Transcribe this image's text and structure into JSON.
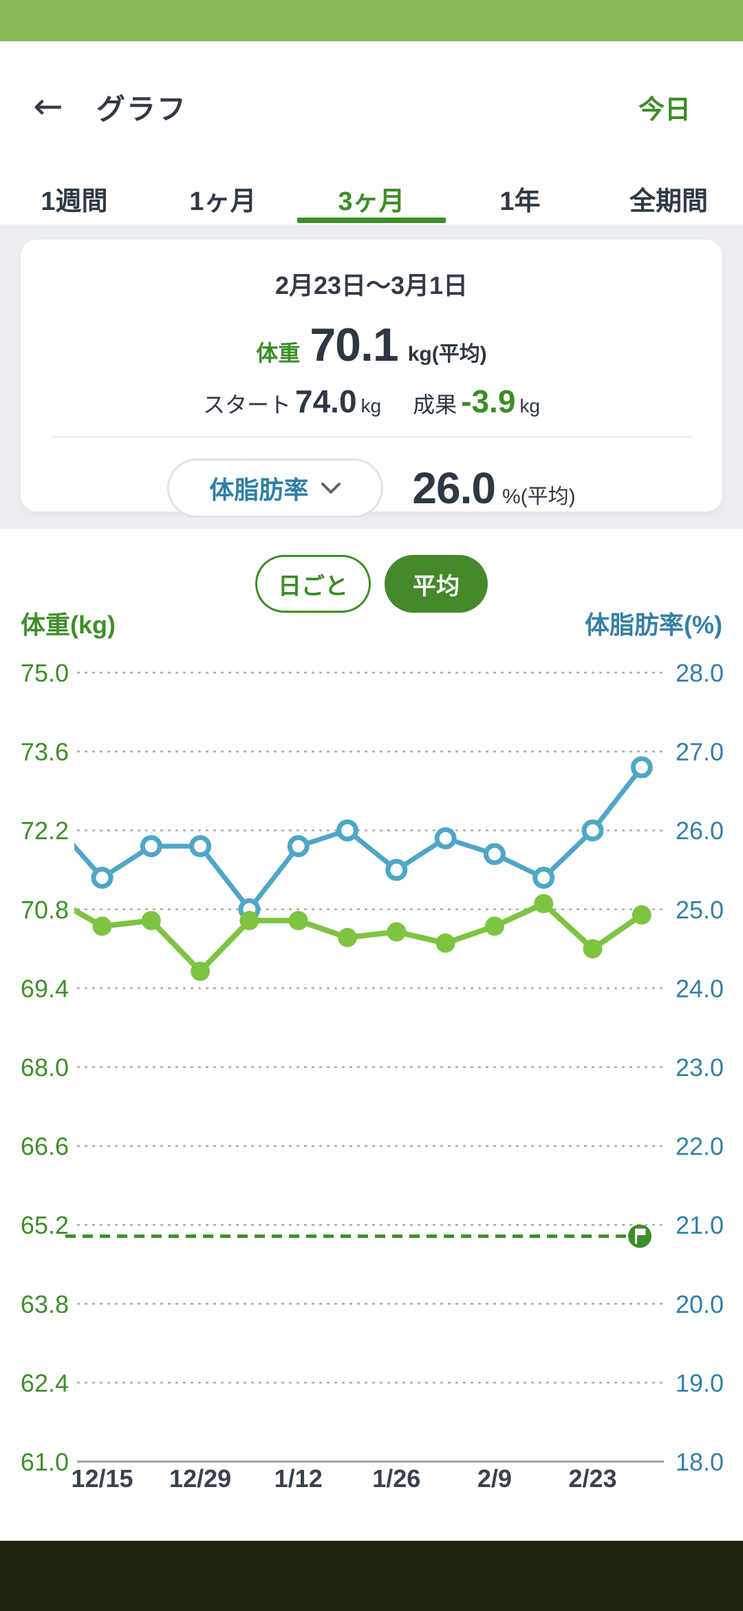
{
  "header": {
    "title": "グラフ",
    "today_label": "今日",
    "back_icon": "arrow-left"
  },
  "tabs": {
    "items": [
      "1週間",
      "1ヶ月",
      "3ヶ月",
      "1年",
      "全期間"
    ],
    "selected_index": 2
  },
  "summary_card": {
    "date_range": "2月23日〜3月1日",
    "weight": {
      "label": "体重",
      "value": "70.1",
      "unit": "kg(平均)"
    },
    "start": {
      "label": "スタート",
      "value": "74.0",
      "unit": "kg"
    },
    "result": {
      "label": "成果",
      "value": "-3.9",
      "unit": "kg"
    },
    "metric_selector": {
      "label": "体脂肪率",
      "icon": "chevron-down",
      "value": "26.0",
      "unit": "%(平均)"
    }
  },
  "mode_toggle": {
    "options": [
      {
        "label": "日ごと",
        "selected": false
      },
      {
        "label": "平均",
        "selected": true
      }
    ]
  },
  "colors": {
    "status_bar": "#8ABA57",
    "accent_green": "#3C8C27",
    "button_green": "#45892C",
    "bottom_bar": "#1D2412"
  },
  "chart_data": {
    "type": "line",
    "x_tick_labels": [
      "12/15",
      "12/29",
      "1/12",
      "1/26",
      "2/9",
      "2/23"
    ],
    "x_label_point_indices": [
      1,
      3,
      5,
      7,
      9,
      11
    ],
    "left_axis": {
      "title": "体重(kg)",
      "ticks": [
        75.0,
        73.6,
        72.2,
        70.8,
        69.4,
        68.0,
        66.6,
        65.2,
        63.8,
        62.4,
        61.0
      ],
      "range": [
        61.0,
        75.0
      ],
      "color": "#3F8D2B"
    },
    "right_axis": {
      "title": "体脂肪率(%)",
      "ticks": [
        28.0,
        27.0,
        26.0,
        25.0,
        24.0,
        23.0,
        22.0,
        21.0,
        20.0,
        19.0,
        18.0
      ],
      "range": [
        18.0,
        28.0
      ],
      "color": "#3580A5"
    },
    "grid": "dotted-horizontal",
    "legend_position": "none",
    "series": [
      {
        "name": "体脂肪率",
        "axis": "right",
        "color": "#4FA6C6",
        "marker": "open-circle",
        "values": [
          26.1,
          25.4,
          25.8,
          25.8,
          25.0,
          25.8,
          26.0,
          25.5,
          25.9,
          25.7,
          25.4,
          26.0,
          26.8
        ]
      },
      {
        "name": "体重",
        "axis": "left",
        "color": "#7EC342",
        "marker": "filled-circle",
        "values": [
          71.0,
          70.5,
          70.6,
          69.7,
          70.6,
          70.6,
          70.3,
          70.4,
          70.2,
          70.5,
          70.9,
          70.1,
          70.7
        ]
      }
    ],
    "goal_line": {
      "axis": "left",
      "value": 65.0,
      "color": "#3F8D2B",
      "style": "dashed",
      "marker": "goal-flag"
    }
  }
}
